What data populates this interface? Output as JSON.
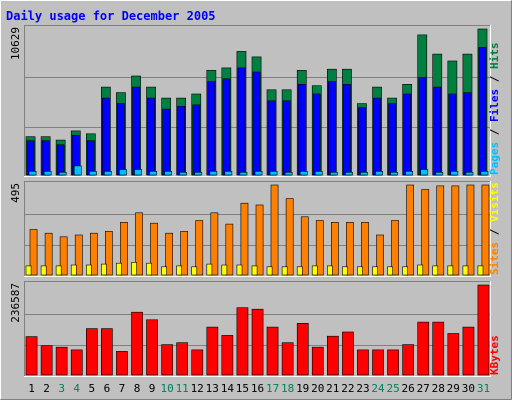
{
  "chart_data": [
    {
      "type": "bar",
      "title": "Daily usage for December 2005",
      "categories": [
        "1",
        "2",
        "3",
        "4",
        "5",
        "6",
        "7",
        "8",
        "9",
        "10",
        "11",
        "12",
        "13",
        "14",
        "15",
        "16",
        "17",
        "18",
        "19",
        "20",
        "21",
        "22",
        "23",
        "24",
        "25",
        "26",
        "27",
        "28",
        "29",
        "30",
        "31"
      ],
      "weekend_days": [
        "3",
        "4",
        "10",
        "11",
        "17",
        "18",
        "24",
        "25",
        "31"
      ],
      "ymax_label": "10629",
      "ylim": [
        0,
        10629
      ],
      "right_label_parts": [
        "Pages",
        "Files",
        "Hits"
      ],
      "grid": true,
      "series": [
        {
          "name": "Hits",
          "color": "#008040",
          "values": [
            2790,
            2790,
            2540,
            3210,
            3000,
            6400,
            6000,
            7210,
            6400,
            5600,
            5600,
            5900,
            7620,
            7800,
            9000,
            8600,
            6200,
            6200,
            7620,
            6500,
            7700,
            7700,
            5200,
            6400,
            5600,
            6600,
            10200,
            8800,
            8300,
            8800,
            10629
          ]
        },
        {
          "name": "Files",
          "color": "#0000ff",
          "values": [
            2500,
            2500,
            2200,
            2900,
            2500,
            5600,
            5200,
            6400,
            5600,
            4800,
            5000,
            5100,
            6800,
            7000,
            7800,
            7500,
            5400,
            5400,
            6600,
            5900,
            6800,
            6600,
            4900,
            5600,
            5200,
            5900,
            7100,
            6400,
            5900,
            6000,
            9300
          ]
        },
        {
          "name": "Pages",
          "color": "#00c0ff",
          "values": [
            270,
            270,
            200,
            660,
            270,
            270,
            400,
            400,
            270,
            270,
            200,
            200,
            270,
            270,
            200,
            270,
            270,
            200,
            270,
            270,
            200,
            200,
            200,
            270,
            200,
            270,
            400,
            200,
            270,
            200,
            270
          ]
        }
      ]
    },
    {
      "type": "bar",
      "categories": [
        "1",
        "2",
        "3",
        "4",
        "5",
        "6",
        "7",
        "8",
        "9",
        "10",
        "11",
        "12",
        "13",
        "14",
        "15",
        "16",
        "17",
        "18",
        "19",
        "20",
        "21",
        "22",
        "23",
        "24",
        "25",
        "26",
        "27",
        "28",
        "29",
        "30",
        "31"
      ],
      "ymax_label": "495",
      "ylim": [
        0,
        495
      ],
      "right_label_parts": [
        "Sites",
        "Visits"
      ],
      "grid": true,
      "series": [
        {
          "name": "Visits",
          "color": "#ff8000",
          "values": [
            250,
            230,
            210,
            220,
            230,
            240,
            290,
            342,
            285,
            230,
            240,
            300,
            342,
            280,
            395,
            385,
            495,
            420,
            320,
            300,
            290,
            290,
            290,
            220,
            300,
            495,
            470,
            490,
            490,
            495,
            495
          ]
        },
        {
          "name": "Sites",
          "color": "#ffff00",
          "values": [
            50,
            50,
            50,
            55,
            55,
            60,
            65,
            70,
            65,
            45,
            50,
            45,
            60,
            55,
            55,
            50,
            45,
            45,
            45,
            50,
            50,
            45,
            45,
            45,
            45,
            45,
            55,
            50,
            50,
            50,
            50
          ]
        }
      ]
    },
    {
      "type": "bar",
      "categories": [
        "1",
        "2",
        "3",
        "4",
        "5",
        "6",
        "7",
        "8",
        "9",
        "10",
        "11",
        "12",
        "13",
        "14",
        "15",
        "16",
        "17",
        "18",
        "19",
        "20",
        "21",
        "22",
        "23",
        "24",
        "25",
        "26",
        "27",
        "28",
        "29",
        "30",
        "31"
      ],
      "ymax_label": "236587",
      "ylim": [
        0,
        236587
      ],
      "right_label_parts": [
        "KBytes"
      ],
      "grid": true,
      "series": [
        {
          "name": "KBytes",
          "color": "#ff0000",
          "values": [
            101000,
            77000,
            73000,
            66000,
            122000,
            122000,
            62000,
            165000,
            145000,
            80000,
            85000,
            66000,
            126000,
            104000,
            177000,
            173000,
            126000,
            85000,
            136000,
            73000,
            102000,
            113000,
            66000,
            66000,
            66000,
            80000,
            139000,
            139000,
            109000,
            126000,
            236587
          ]
        }
      ]
    }
  ],
  "colors": {
    "plot_bg": "#c0c0c0",
    "frame_dark": "#808080",
    "frame_light": "#ffffff",
    "title_color": "#0000ff",
    "weekday_label": "#000000",
    "weekend_label": "#00805c",
    "kbytes_label": "#ff0000"
  }
}
